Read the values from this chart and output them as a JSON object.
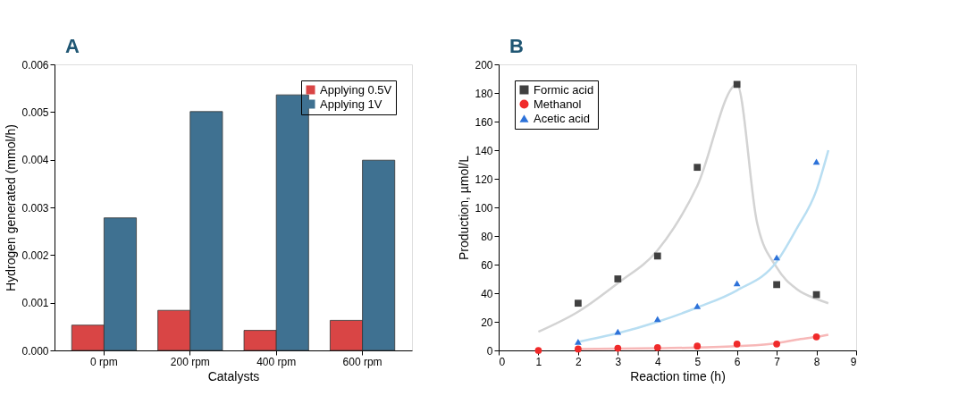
{
  "chart_data": [
    {
      "type": "bar",
      "annotations": [
        "A"
      ],
      "categories": [
        "0 rpm",
        "200 rpm",
        "400 rpm",
        "600 rpm"
      ],
      "series": [
        {
          "name": "Applying 0.5V",
          "color": "#d94545",
          "values": [
            0.00053,
            0.00084,
            0.00042,
            0.00063
          ]
        },
        {
          "name": "Applying 1V",
          "color": "#3f7191",
          "values": [
            0.00278,
            0.00501,
            0.00536,
            0.00399
          ]
        }
      ],
      "xlabel": "Catalysts",
      "ylabel": "Hydrogen generated (mmol/h)",
      "ylim": [
        0,
        0.006
      ],
      "yticks": [
        {
          "value": 0,
          "label": "0.000"
        },
        {
          "value": 0.001,
          "label": "0.001"
        },
        {
          "value": 0.002,
          "label": "0.002"
        },
        {
          "value": 0.003,
          "label": "0.003"
        },
        {
          "value": 0.004,
          "label": "0.004"
        },
        {
          "value": 0.005,
          "label": "0.005"
        },
        {
          "value": 0.006,
          "label": "0.006"
        }
      ],
      "grid": false,
      "legend": "top right"
    },
    {
      "type": "scatter",
      "annotations": [
        "B"
      ],
      "series": [
        {
          "type": "line",
          "color": "#d3d3d3",
          "x": [
            1,
            2,
            3,
            4,
            5,
            6,
            6.5,
            7,
            7.5,
            8,
            8.3
          ],
          "values": [
            13,
            27,
            47,
            70,
            115,
            186,
            90,
            58,
            43,
            36,
            33
          ]
        },
        {
          "type": "line",
          "color": "#b8def2",
          "x": [
            2,
            3,
            4,
            5,
            6,
            7,
            7.5,
            8,
            8.3
          ],
          "values": [
            6,
            12,
            20,
            30,
            42,
            62,
            85,
            112,
            140
          ]
        },
        {
          "type": "line",
          "color": "#f7b8b8",
          "x": [
            2,
            4,
            6,
            7,
            7.5,
            8,
            8.3
          ],
          "values": [
            1,
            1.5,
            3,
            5,
            7.5,
            9.5,
            11
          ]
        },
        {
          "name": "Formic acid",
          "color": "#404040",
          "marker": "square",
          "x": [
            2,
            3,
            4,
            5,
            6,
            7,
            8
          ],
          "values": [
            33,
            50,
            66,
            128,
            186,
            46,
            39
          ]
        },
        {
          "name": "Methanol",
          "color": "#f02a2a",
          "marker": "circle",
          "x": [
            1,
            2,
            3,
            4,
            5,
            6,
            7,
            8
          ],
          "values": [
            0,
            1,
            1.5,
            2,
            3,
            4.5,
            4.5,
            9.5
          ]
        },
        {
          "name": "Acetic acid",
          "color": "#2d72d9",
          "marker": "triangle",
          "x": [
            2,
            3,
            4,
            5,
            6,
            7,
            8
          ],
          "values": [
            6,
            13,
            22,
            31,
            47,
            65,
            132
          ]
        }
      ],
      "xlabel": "Reaction time (h)",
      "ylabel": "Production, µmol/L",
      "xlim": [
        0,
        9
      ],
      "xticks": [
        0,
        1,
        2,
        3,
        4,
        5,
        6,
        7,
        8,
        9
      ],
      "ylim": [
        0,
        200
      ],
      "yticks": [
        0,
        20,
        40,
        60,
        80,
        100,
        120,
        140,
        160,
        180,
        200
      ],
      "grid": false,
      "legend": "top left"
    }
  ]
}
